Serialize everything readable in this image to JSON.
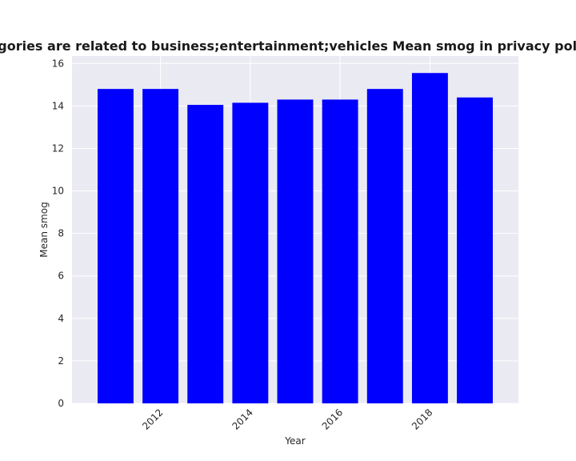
{
  "chart_data": {
    "type": "bar",
    "title": "Mean smog in privacy policies by year when categories are related to business;entertainment;vehicles",
    "title_visible": "en categories are related to business;entertainment;vehicles Mean smog in privacy policies by",
    "xlabel": "Year",
    "ylabel": "Mean smog",
    "x": [
      2011,
      2012,
      2013,
      2014,
      2015,
      2016,
      2017,
      2018,
      2019
    ],
    "values": [
      14.8,
      14.8,
      14.05,
      14.15,
      14.3,
      14.3,
      14.8,
      15.55,
      14.4
    ],
    "xticks": [
      "2012",
      "2014",
      "2016",
      "2018"
    ],
    "yticks": [
      "0",
      "2",
      "4",
      "6",
      "8",
      "10",
      "12",
      "14",
      "16"
    ],
    "ylim": [
      0,
      16.35
    ],
    "xlim": [
      2010.03,
      2019.97
    ],
    "bar_color": "#0000ff",
    "background_color": "#eaeaf2",
    "grid_color": "#ffffff",
    "grid": true
  }
}
